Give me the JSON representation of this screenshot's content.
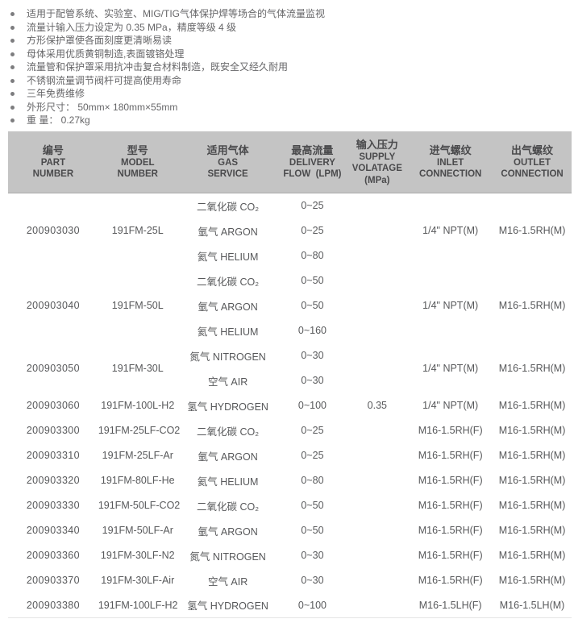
{
  "features": {
    "items": [
      "适用于配管系统、实验室、MIG/TIG气体保护焊等场合的气体流量监视",
      "流量计输入压力设定为 0.35 MPa，精度等级 4 级",
      "方形保护罩使各面刻度更清晰易读",
      "母体采用优质黄铜制造,表面镀铬处理",
      "流量管和保护罩采用抗冲击复合材料制造，既安全又经久耐用",
      "不锈钢流量调节阀杆可提高使用寿命",
      "三年免费维修",
      "外形尺寸： 50mm× 180mm×55mm",
      "重 量： 0.27kg"
    ]
  },
  "table": {
    "columns": [
      {
        "id": "part",
        "lines": [
          "编号",
          "PART",
          "NUMBER"
        ]
      },
      {
        "id": "model",
        "lines": [
          "型号",
          "MODEL",
          "NUMBER"
        ]
      },
      {
        "id": "gas",
        "lines": [
          "适用气体",
          "GAS",
          "SERVICE"
        ]
      },
      {
        "id": "flow",
        "lines": [
          "最高流量",
          "DELIVERY",
          "FLOW  (LPM)"
        ]
      },
      {
        "id": "supply",
        "lines": [
          "输入压力",
          "SUPPLY",
          "VOLATAGE",
          "(MPa)"
        ]
      },
      {
        "id": "inlet",
        "lines": [
          "进气螺纹",
          "INLET",
          "CONNECTION"
        ]
      },
      {
        "id": "outlet",
        "lines": [
          "出气螺纹",
          "OUTLET",
          "CONNECTION"
        ]
      }
    ],
    "supply_pressure": "0.35",
    "groups": [
      {
        "part": "200903030",
        "model": "191FM-25L",
        "inlet": "1/4\" NPT(M)",
        "outlet": "M16-1.5RH(M)",
        "gases": [
          {
            "name": "二氧化碳 CO₂",
            "flow": "0~25"
          },
          {
            "name": "氩气 ARGON",
            "flow": "0~25"
          },
          {
            "name": "氦气 HELIUM",
            "flow": "0~80"
          }
        ]
      },
      {
        "part": "200903040",
        "model": "191FM-50L",
        "inlet": "1/4\" NPT(M)",
        "outlet": "M16-1.5RH(M)",
        "gases": [
          {
            "name": "二氧化碳 CO₂",
            "flow": "0~50"
          },
          {
            "name": "氩气 ARGON",
            "flow": "0~50"
          },
          {
            "name": "氦气 HELIUM",
            "flow": "0~160"
          }
        ]
      },
      {
        "part": "200903050",
        "model": "191FM-30L",
        "inlet": "1/4\" NPT(M)",
        "outlet": "M16-1.5RH(M)",
        "gases": [
          {
            "name": "氮气 NITROGEN",
            "flow": "0~30"
          },
          {
            "name": "空气 AIR",
            "flow": "0~30"
          }
        ]
      },
      {
        "part": "200903060",
        "model": "191FM-100L-H2",
        "inlet": "1/4\" NPT(M)",
        "outlet": "M16-1.5RH(M)",
        "gases": [
          {
            "name": "氢气 HYDROGEN",
            "flow": "0~100"
          }
        ]
      },
      {
        "part": "200903300",
        "model": "191FM-25LF-CO2",
        "inlet": "M16-1.5RH(F)",
        "outlet": "M16-1.5RH(M)",
        "gases": [
          {
            "name": "二氧化碳 CO₂",
            "flow": "0~25"
          }
        ]
      },
      {
        "part": "200903310",
        "model": "191FM-25LF-Ar",
        "inlet": "M16-1.5RH(F)",
        "outlet": "M16-1.5RH(M)",
        "gases": [
          {
            "name": "氩气 ARGON",
            "flow": "0~25"
          }
        ]
      },
      {
        "part": "200903320",
        "model": "191FM-80LF-He",
        "inlet": "M16-1.5RH(F)",
        "outlet": "M16-1.5RH(M)",
        "gases": [
          {
            "name": "氦气 HELIUM",
            "flow": "0~80"
          }
        ]
      },
      {
        "part": "200903330",
        "model": "191FM-50LF-CO2",
        "inlet": "M16-1.5RH(F)",
        "outlet": "M16-1.5RH(M)",
        "gases": [
          {
            "name": "二氧化碳 CO₂",
            "flow": "0~50"
          }
        ]
      },
      {
        "part": "200903340",
        "model": "191FM-50LF-Ar",
        "inlet": "M16-1.5RH(F)",
        "outlet": "M16-1.5RH(M)",
        "gases": [
          {
            "name": "氩气 ARGON",
            "flow": "0~50"
          }
        ]
      },
      {
        "part": "200903360",
        "model": "191FM-30LF-N2",
        "inlet": "M16-1.5RH(F)",
        "outlet": "M16-1.5RH(M)",
        "gases": [
          {
            "name": "氮气 NITROGEN",
            "flow": "0~30"
          }
        ]
      },
      {
        "part": "200903370",
        "model": "191FM-30LF-Air",
        "inlet": "M16-1.5RH(F)",
        "outlet": "M16-1.5RH(M)",
        "gases": [
          {
            "name": "空气 AIR",
            "flow": "0~30"
          }
        ]
      },
      {
        "part": "200903380",
        "model": "191FM-100LF-H2",
        "inlet": "M16-1.5LH(F)",
        "outlet": "M16-1.5LH(M)",
        "gases": [
          {
            "name": "氢气 HYDROGEN",
            "flow": "0~100"
          }
        ]
      }
    ]
  }
}
